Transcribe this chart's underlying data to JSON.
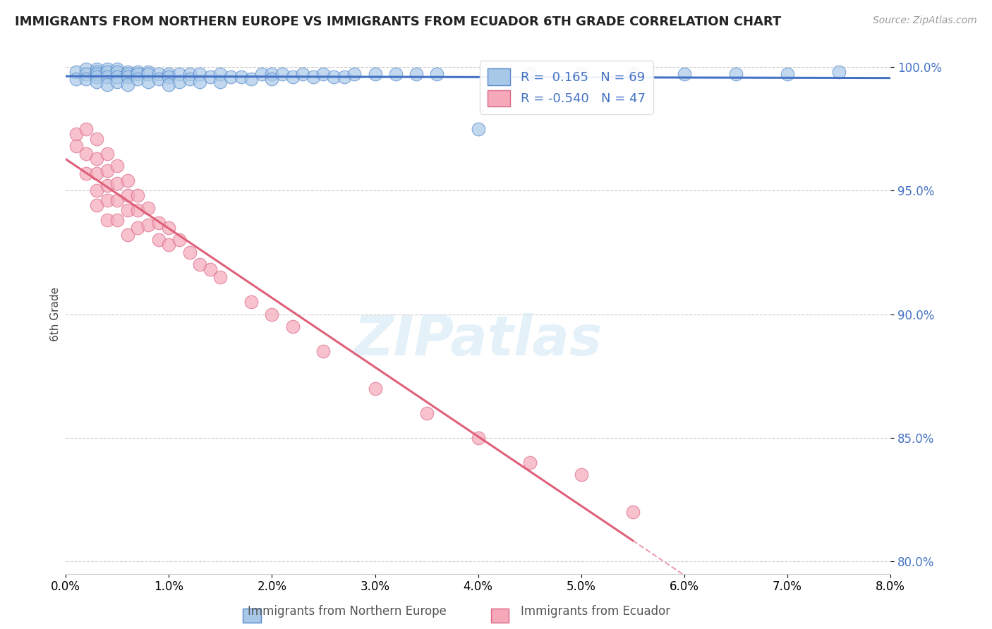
{
  "title": "IMMIGRANTS FROM NORTHERN EUROPE VS IMMIGRANTS FROM ECUADOR 6TH GRADE CORRELATION CHART",
  "source": "Source: ZipAtlas.com",
  "xlabel_blue": "Immigrants from Northern Europe",
  "xlabel_pink": "Immigrants from Ecuador",
  "ylabel": "6th Grade",
  "xlim": [
    0.0,
    0.08
  ],
  "ylim": [
    0.795,
    1.005
  ],
  "yticks": [
    0.8,
    0.85,
    0.9,
    0.95,
    1.0
  ],
  "xticks": [
    0.0,
    0.01,
    0.02,
    0.03,
    0.04,
    0.05,
    0.06,
    0.07,
    0.08
  ],
  "xtick_labels": [
    "0.0%",
    "1.0%",
    "2.0%",
    "3.0%",
    "4.0%",
    "5.0%",
    "6.0%",
    "7.0%",
    "8.0%"
  ],
  "blue_R": 0.165,
  "blue_N": 69,
  "pink_R": -0.54,
  "pink_N": 47,
  "blue_color": "#a8c8e8",
  "pink_color": "#f4a8b8",
  "blue_edge_color": "#5588cc",
  "pink_edge_color": "#dd6688",
  "blue_line_color": "#4472c4",
  "pink_line_color": "#e0607a",
  "watermark": "ZIPatlas",
  "background_color": "#ffffff",
  "blue_x": [
    0.001,
    0.001,
    0.002,
    0.002,
    0.002,
    0.003,
    0.003,
    0.003,
    0.003,
    0.003,
    0.004,
    0.004,
    0.004,
    0.004,
    0.005,
    0.005,
    0.005,
    0.005,
    0.006,
    0.006,
    0.006,
    0.006,
    0.007,
    0.007,
    0.007,
    0.008,
    0.008,
    0.008,
    0.009,
    0.009,
    0.01,
    0.01,
    0.01,
    0.011,
    0.011,
    0.012,
    0.012,
    0.013,
    0.013,
    0.014,
    0.015,
    0.015,
    0.016,
    0.017,
    0.018,
    0.019,
    0.02,
    0.02,
    0.021,
    0.022,
    0.023,
    0.024,
    0.025,
    0.026,
    0.027,
    0.028,
    0.03,
    0.032,
    0.034,
    0.036,
    0.04,
    0.042,
    0.045,
    0.05,
    0.055,
    0.06,
    0.065,
    0.07,
    0.075
  ],
  "blue_y": [
    0.998,
    0.995,
    0.999,
    0.997,
    0.995,
    0.999,
    0.998,
    0.997,
    0.996,
    0.994,
    0.999,
    0.998,
    0.996,
    0.993,
    0.999,
    0.998,
    0.996,
    0.994,
    0.998,
    0.997,
    0.996,
    0.993,
    0.998,
    0.997,
    0.995,
    0.998,
    0.997,
    0.994,
    0.997,
    0.995,
    0.997,
    0.996,
    0.993,
    0.997,
    0.994,
    0.997,
    0.995,
    0.997,
    0.994,
    0.996,
    0.997,
    0.994,
    0.996,
    0.996,
    0.995,
    0.997,
    0.997,
    0.995,
    0.997,
    0.996,
    0.997,
    0.996,
    0.997,
    0.996,
    0.996,
    0.997,
    0.997,
    0.997,
    0.997,
    0.997,
    0.975,
    0.997,
    0.997,
    0.997,
    0.997,
    0.997,
    0.997,
    0.997,
    0.998
  ],
  "pink_x": [
    0.001,
    0.001,
    0.002,
    0.002,
    0.002,
    0.003,
    0.003,
    0.003,
    0.003,
    0.003,
    0.004,
    0.004,
    0.004,
    0.004,
    0.004,
    0.005,
    0.005,
    0.005,
    0.005,
    0.006,
    0.006,
    0.006,
    0.006,
    0.007,
    0.007,
    0.007,
    0.008,
    0.008,
    0.009,
    0.009,
    0.01,
    0.01,
    0.011,
    0.012,
    0.013,
    0.014,
    0.015,
    0.018,
    0.02,
    0.022,
    0.025,
    0.03,
    0.035,
    0.04,
    0.045,
    0.05,
    0.055
  ],
  "pink_y": [
    0.973,
    0.968,
    0.975,
    0.965,
    0.957,
    0.971,
    0.963,
    0.957,
    0.95,
    0.944,
    0.965,
    0.958,
    0.952,
    0.946,
    0.938,
    0.96,
    0.953,
    0.946,
    0.938,
    0.954,
    0.948,
    0.942,
    0.932,
    0.948,
    0.942,
    0.935,
    0.943,
    0.936,
    0.937,
    0.93,
    0.935,
    0.928,
    0.93,
    0.925,
    0.92,
    0.918,
    0.915,
    0.905,
    0.9,
    0.895,
    0.885,
    0.87,
    0.86,
    0.85,
    0.84,
    0.835,
    0.82
  ],
  "blue_trendline": [
    0.0,
    0.08
  ],
  "pink_trendline_solid": [
    0.0,
    0.05
  ],
  "pink_trendline_dashed": [
    0.05,
    0.08
  ]
}
